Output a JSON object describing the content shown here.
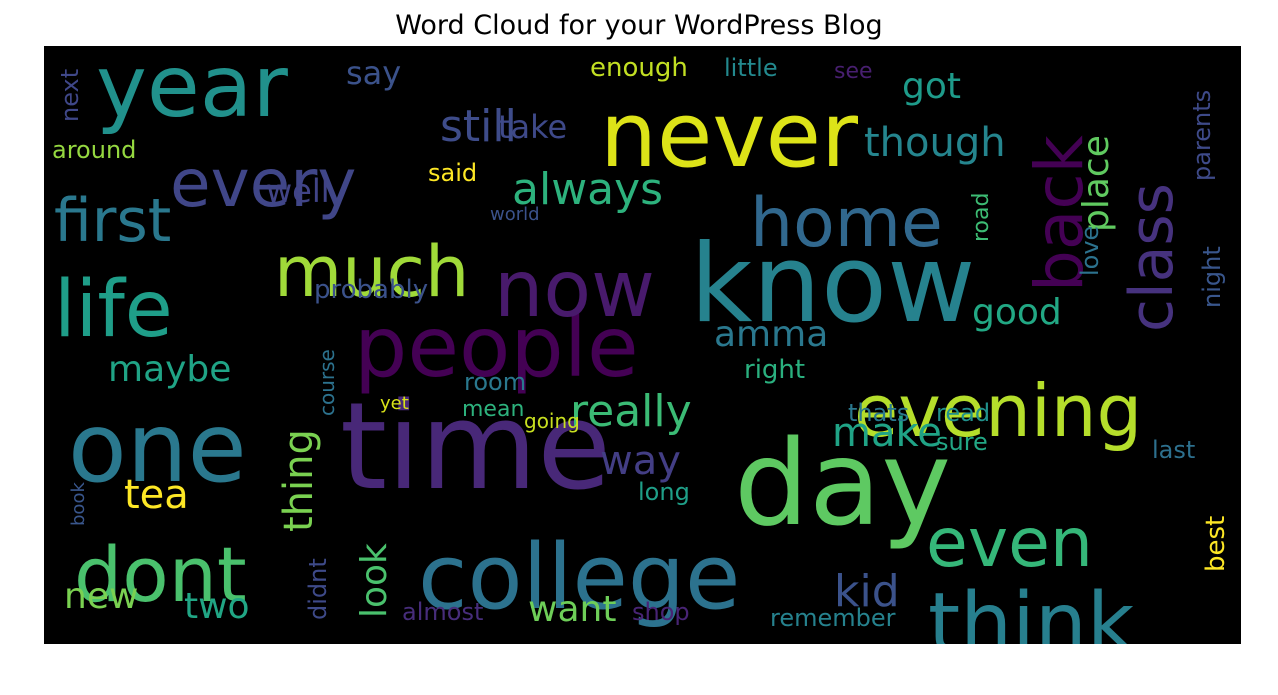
{
  "chart_data": {
    "type": "wordcloud",
    "title": "Word Cloud for your WordPress Blog",
    "background": "#000000",
    "colormap": "viridis",
    "words": [
      {
        "text": "time",
        "color": "#482878"
      },
      {
        "text": "day",
        "color": "#5ec962"
      },
      {
        "text": "know",
        "color": "#26828e"
      },
      {
        "text": "college",
        "color": "#2c728e"
      },
      {
        "text": "one",
        "color": "#2a788e"
      },
      {
        "text": "never",
        "color": "#dde318"
      },
      {
        "text": "people",
        "color": "#440154"
      },
      {
        "text": "year",
        "color": "#21918c"
      },
      {
        "text": "now",
        "color": "#481a6c"
      },
      {
        "text": "life",
        "color": "#1f9e89"
      },
      {
        "text": "think",
        "color": "#277f8e"
      },
      {
        "text": "evening",
        "color": "#b5de2b"
      },
      {
        "text": "dont",
        "color": "#4ac16d"
      },
      {
        "text": "much",
        "color": "#a0da39"
      },
      {
        "text": "home",
        "color": "#31688e"
      },
      {
        "text": "back",
        "color": "#440154"
      },
      {
        "text": "every",
        "color": "#404688"
      },
      {
        "text": "even",
        "color": "#35b779"
      },
      {
        "text": "class",
        "color": "#46327e"
      },
      {
        "text": "first",
        "color": "#2a788e"
      },
      {
        "text": "really",
        "color": "#3bbb75"
      },
      {
        "text": "still",
        "color": "#3e4c8a"
      },
      {
        "text": "always",
        "color": "#2db27d"
      },
      {
        "text": "place",
        "color": "#60ca60"
      },
      {
        "text": "though",
        "color": "#25858e"
      },
      {
        "text": "make",
        "color": "#20a386"
      },
      {
        "text": "thing",
        "color": "#7ad151"
      },
      {
        "text": "kid",
        "color": "#3b528b"
      },
      {
        "text": "want",
        "color": "#6ece58"
      },
      {
        "text": "way",
        "color": "#433e85"
      },
      {
        "text": "maybe",
        "color": "#20a486"
      },
      {
        "text": "two",
        "color": "#21a685"
      },
      {
        "text": "tea",
        "color": "#fde725"
      },
      {
        "text": "look",
        "color": "#4ac16d"
      },
      {
        "text": "good",
        "color": "#22a884"
      },
      {
        "text": "amma",
        "color": "#2a788e"
      },
      {
        "text": "new",
        "color": "#7ad151"
      },
      {
        "text": "got",
        "color": "#1e9b8a"
      },
      {
        "text": "take",
        "color": "#3e4989"
      },
      {
        "text": "well",
        "color": "#414487"
      },
      {
        "text": "say",
        "color": "#3b528b"
      },
      {
        "text": "enough",
        "color": "#c2df23"
      },
      {
        "text": "little",
        "color": "#23898e"
      },
      {
        "text": "see",
        "color": "#481f70"
      },
      {
        "text": "around",
        "color": "#95d840"
      },
      {
        "text": "next",
        "color": "#3f4788"
      },
      {
        "text": "said",
        "color": "#fde725"
      },
      {
        "text": "world",
        "color": "#3b528b"
      },
      {
        "text": "road",
        "color": "#3dbc74"
      },
      {
        "text": "love",
        "color": "#2c728e"
      },
      {
        "text": "parents",
        "color": "#3e4a89"
      },
      {
        "text": "night",
        "color": "#39568c"
      },
      {
        "text": "probably",
        "color": "#3b528b"
      },
      {
        "text": "course",
        "color": "#2c728e"
      },
      {
        "text": "right",
        "color": "#2ab07f"
      },
      {
        "text": "room",
        "color": "#2a788e"
      },
      {
        "text": "mean",
        "color": "#2db27d"
      },
      {
        "text": "yet",
        "color": "#d8e219"
      },
      {
        "text": "going",
        "color": "#c8e020"
      },
      {
        "text": "thats",
        "color": "#2a788e"
      },
      {
        "text": "read",
        "color": "#21918c"
      },
      {
        "text": "sure",
        "color": "#22a785"
      },
      {
        "text": "last",
        "color": "#2d708e"
      },
      {
        "text": "long",
        "color": "#1f9f88"
      },
      {
        "text": "book",
        "color": "#39568c"
      },
      {
        "text": "best",
        "color": "#fde725"
      },
      {
        "text": "didnt",
        "color": "#3e4a89"
      },
      {
        "text": "almost",
        "color": "#472d7b"
      },
      {
        "text": "shop",
        "color": "#482475"
      },
      {
        "text": "remember",
        "color": "#26828e"
      }
    ]
  }
}
